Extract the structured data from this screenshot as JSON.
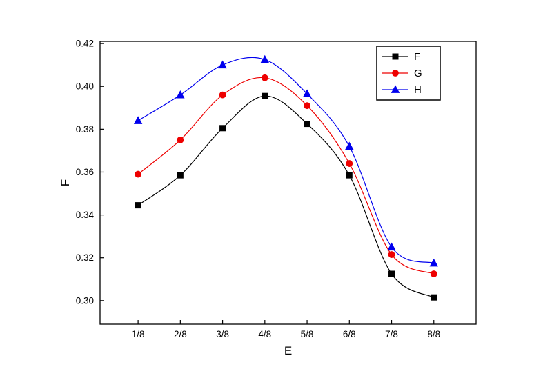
{
  "figure": {
    "background": "#ffffff",
    "axis_color": "#000000"
  },
  "chart_data": {
    "type": "line",
    "title": "",
    "xlabel": "E",
    "ylabel": "F",
    "categories": [
      "1/8",
      "2/8",
      "3/8",
      "4/8",
      "5/8",
      "6/8",
      "7/8",
      "8/8"
    ],
    "y_tick_labels": [
      "0.30",
      "0.32",
      "0.34",
      "0.36",
      "0.38",
      "0.40",
      "0.42"
    ],
    "ylim": [
      0.289,
      0.421
    ],
    "grid": false,
    "smoothing": true,
    "legend_position": "top-right",
    "series": [
      {
        "name": "F",
        "color": "#000000",
        "marker": "square",
        "values": [
          0.3445,
          0.3585,
          0.3805,
          0.3955,
          0.3825,
          0.3585,
          0.3125,
          0.3015
        ]
      },
      {
        "name": "G",
        "color": "#ee0000",
        "marker": "circle",
        "values": [
          0.359,
          0.375,
          0.396,
          0.404,
          0.391,
          0.364,
          0.3215,
          0.3125
        ]
      },
      {
        "name": "H",
        "color": "#0000ee",
        "marker": "triangle",
        "values": [
          0.384,
          0.396,
          0.41,
          0.4125,
          0.3965,
          0.372,
          0.325,
          0.3175
        ]
      }
    ]
  }
}
